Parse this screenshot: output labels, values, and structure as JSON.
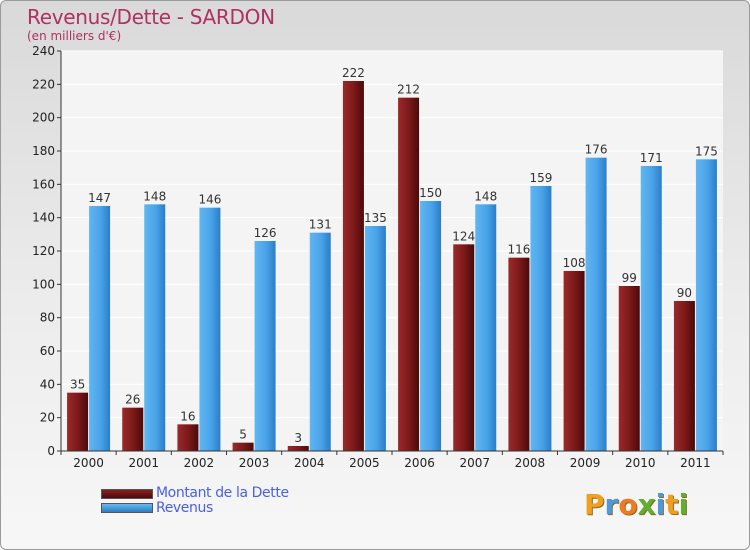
{
  "chart_data": {
    "type": "bar",
    "title": "Revenus/Dette - SARDON",
    "subtitle": "(en milliers d'€)",
    "xlabel": "",
    "ylabel": "",
    "ylim": [
      0,
      240
    ],
    "yticks": [
      0,
      20,
      40,
      60,
      80,
      100,
      120,
      140,
      160,
      180,
      200,
      220,
      240
    ],
    "grid": true,
    "categories": [
      "2000",
      "2001",
      "2002",
      "2003",
      "2004",
      "2005",
      "2006",
      "2007",
      "2008",
      "2009",
      "2010",
      "2011"
    ],
    "series": [
      {
        "name": "Montant de la Dette",
        "color": "#7a1a1a",
        "values": [
          35,
          26,
          16,
          5,
          3,
          222,
          212,
          124,
          116,
          108,
          99,
          90
        ]
      },
      {
        "name": "Revenus",
        "color": "#4aa3e8",
        "values": [
          147,
          148,
          146,
          126,
          131,
          135,
          150,
          148,
          159,
          176,
          171,
          175
        ]
      }
    ],
    "legend": {
      "position": "bottom-left"
    }
  },
  "branding": {
    "logo_letters": [
      "P",
      "r",
      "o",
      "x",
      "i",
      "t",
      "i"
    ],
    "logo_colors": [
      "#f0a020",
      "#4a9ae0",
      "#f07a20",
      "#60b030",
      "#4a9ae0",
      "#f0a020",
      "#60b030"
    ]
  }
}
